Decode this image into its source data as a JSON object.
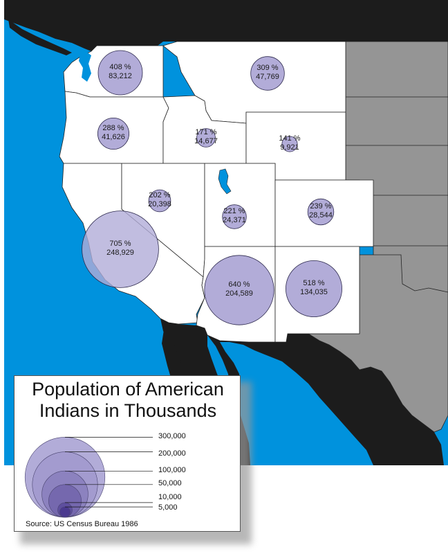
{
  "colors": {
    "ocean": "#0092dd",
    "mexico": "#1c1c1c",
    "other_states": "#959595",
    "study_states": "#ffffff",
    "bubble_fill": "#b2acd8",
    "bubble_stroke": "#2e2a4e",
    "legend_shades": [
      "#b2acd8",
      "#a39bcf",
      "#8c82bf",
      "#7568ae",
      "#5e4f9e",
      "#4b3a8f"
    ]
  },
  "states": [
    {
      "id": "washington",
      "pct": "408 %",
      "pop": "83,212",
      "value": 83212
    },
    {
      "id": "oregon",
      "pct": "288 %",
      "pop": "41,626",
      "value": 41626
    },
    {
      "id": "california",
      "pct": "705 %",
      "pop": "248,929",
      "value": 248929
    },
    {
      "id": "idaho",
      "pct": "171 %",
      "pop": "14,677",
      "value": 14677
    },
    {
      "id": "nevada",
      "pct": "202 %",
      "pop": "20,398",
      "value": 20398
    },
    {
      "id": "montana",
      "pct": "309 %",
      "pop": "47,769",
      "value": 47769
    },
    {
      "id": "wyoming",
      "pct": "141 %",
      "pop": "9,921",
      "value": 9921
    },
    {
      "id": "utah",
      "pct": "221 %",
      "pop": "24,371",
      "value": 24371
    },
    {
      "id": "colorado",
      "pct": "239 %",
      "pop": "28,544",
      "value": 28544
    },
    {
      "id": "arizona",
      "pct": "640 %",
      "pop": "204,589",
      "value": 204589
    },
    {
      "id": "new-mexico",
      "pct": "518 %",
      "pop": "134,035",
      "value": 134035
    }
  ],
  "legend": {
    "title_line1": "Population of American",
    "title_line2": "Indians in Thousands",
    "source": "Source: US Census Bureau 1986",
    "levels": [
      {
        "label": "300,000",
        "value": 300000
      },
      {
        "label": "200,000",
        "value": 200000
      },
      {
        "label": "100,000",
        "value": 100000
      },
      {
        "label": "50,000",
        "value": 50000
      },
      {
        "label": "10,000",
        "value": 10000
      },
      {
        "label": "5,000",
        "value": 5000
      }
    ]
  }
}
